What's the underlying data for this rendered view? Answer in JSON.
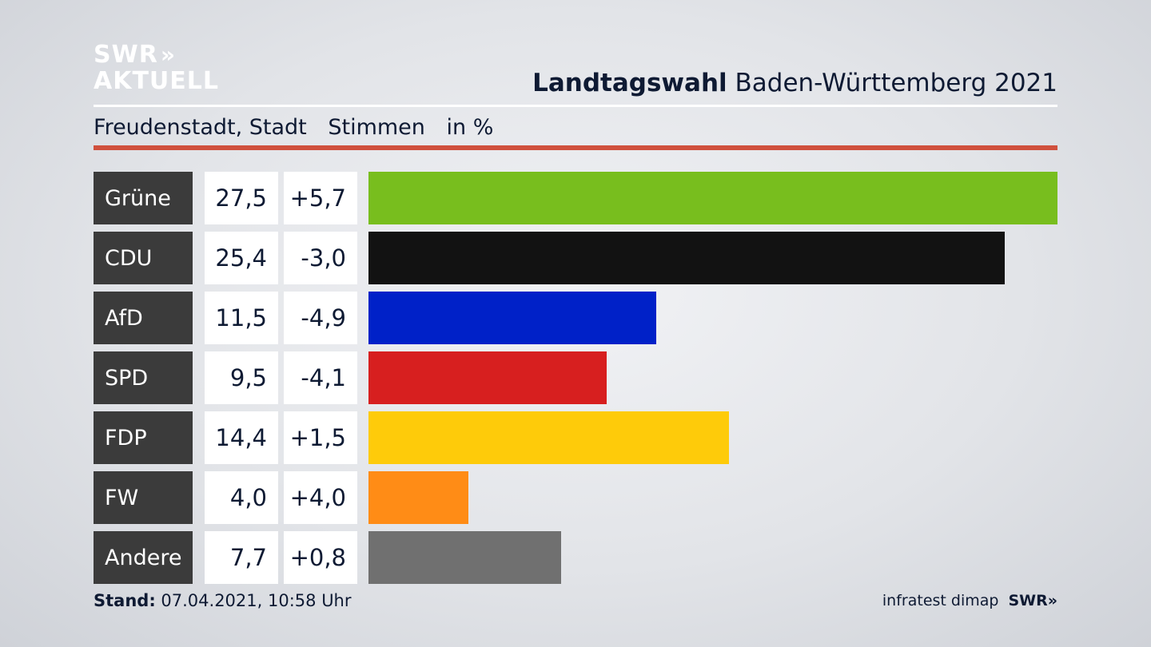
{
  "logo": {
    "line1": "SWR",
    "chevrons": "»",
    "line2": "AKTUELL"
  },
  "header": {
    "title_bold": "Landtagswahl",
    "title_rest": "Baden-Württemberg 2021"
  },
  "subheader": {
    "place": "Freudenstadt, Stadt",
    "measure": "Stimmen",
    "unit": "in %"
  },
  "colors": {
    "accent_rule": "#d0503d",
    "label_bg": "#3b3b3b"
  },
  "chart_data": {
    "type": "bar",
    "orientation": "horizontal",
    "categories": [
      "Grüne",
      "CDU",
      "AfD",
      "SPD",
      "FDP",
      "FW",
      "Andere"
    ],
    "values": [
      27.5,
      25.4,
      11.5,
      9.5,
      14.4,
      4.0,
      7.7
    ],
    "value_labels": [
      "27,5",
      "25,4",
      "11,5",
      "9,5",
      "14,4",
      "4,0",
      "7,7"
    ],
    "diff_labels": [
      "+5,7",
      "-3,0",
      "-4,9",
      "-4,1",
      "+1,5",
      "+4,0",
      "+0,8"
    ],
    "colors": [
      "#78be1e",
      "#121212",
      "#0021c8",
      "#d71f1f",
      "#fecb0a",
      "#ff8c16",
      "#707070"
    ],
    "xlim": [
      0,
      27.5
    ],
    "grid": false
  },
  "footer": {
    "stand_label": "Stand:",
    "stand_value": "07.04.2021, 10:58 Uhr",
    "source": "infratest dimap",
    "brand": "SWR»"
  }
}
